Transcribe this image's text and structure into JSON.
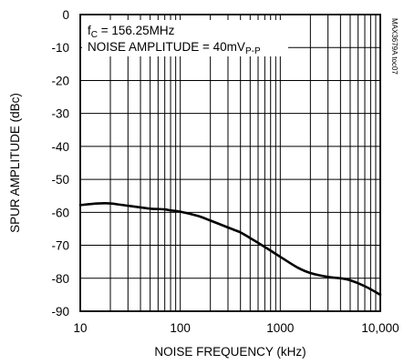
{
  "chart_data": {
    "type": "line",
    "xlabel": "NOISE FREQUENCY (kHz)",
    "ylabel": "SPUR AMPLITUDE (dBc)",
    "xscale": "log",
    "xlim": [
      10,
      10000
    ],
    "ylim": [
      -90,
      0
    ],
    "x_ticks": [
      "10",
      "100",
      "1000",
      "10,000"
    ],
    "y_ticks": [
      "0",
      "-10",
      "-20",
      "-30",
      "-40",
      "-50",
      "-60",
      "-70",
      "-80",
      "-90"
    ],
    "y_tick_values": [
      0,
      -10,
      -20,
      -30,
      -40,
      -50,
      -60,
      -70,
      -80,
      -90
    ],
    "x_tick_values": [
      10,
      100,
      1000,
      10000
    ],
    "grid": true,
    "annotation": {
      "line1_main": "f",
      "line1_sub": "C",
      "line1_rest": " = 156.25MHz",
      "line2_main": "NOISE AMPLITUDE = 40mV",
      "line2_sub": "P-P"
    },
    "figure_id": "MAX3679A toc07",
    "series": [
      {
        "color": "#000000",
        "x": [
          10,
          15,
          20,
          30,
          40,
          50,
          60,
          70,
          80,
          100,
          150,
          200,
          300,
          400,
          500,
          700,
          1000,
          1500,
          2000,
          3000,
          4000,
          5000,
          7000,
          10000
        ],
        "y": [
          -57.8,
          -57.3,
          -57.3,
          -58.0,
          -58.5,
          -58.9,
          -59.0,
          -59.1,
          -59.4,
          -59.8,
          -61.1,
          -62.5,
          -64.6,
          -66.1,
          -67.8,
          -70.5,
          -73.5,
          -76.8,
          -78.4,
          -79.6,
          -80.0,
          -80.6,
          -82.4,
          -85.0
        ]
      }
    ]
  }
}
